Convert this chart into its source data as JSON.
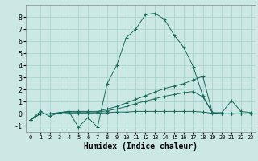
{
  "title": "",
  "xlabel": "Humidex (Indice chaleur)",
  "background_color": "#cce8e4",
  "grid_color": "#aad4cf",
  "line_color": "#1a6b5a",
  "xlim": [
    -0.5,
    23.5
  ],
  "ylim": [
    -1.5,
    9.0
  ],
  "xticks": [
    0,
    1,
    2,
    3,
    4,
    5,
    6,
    7,
    8,
    9,
    10,
    11,
    12,
    13,
    14,
    15,
    16,
    17,
    18,
    19,
    20,
    21,
    22,
    23
  ],
  "yticks": [
    -1,
    0,
    1,
    2,
    3,
    4,
    5,
    6,
    7,
    8
  ],
  "series": [
    [
      -0.5,
      0.2,
      -0.2,
      0.1,
      0.2,
      -1.1,
      -0.3,
      -1.1,
      2.5,
      4.0,
      6.3,
      7.0,
      8.2,
      8.3,
      7.8,
      6.5,
      5.5,
      3.9,
      1.5,
      0.1,
      0.1,
      1.1,
      0.2,
      0.1
    ],
    [
      -0.5,
      0.0,
      0.0,
      0.1,
      0.2,
      0.2,
      0.2,
      0.2,
      0.4,
      0.6,
      0.9,
      1.2,
      1.5,
      1.8,
      2.1,
      2.3,
      2.5,
      2.8,
      3.1,
      0.1,
      0.0,
      0.0,
      0.0,
      0.0
    ],
    [
      -0.5,
      0.0,
      0.0,
      0.1,
      0.15,
      0.15,
      0.15,
      0.15,
      0.25,
      0.4,
      0.6,
      0.85,
      1.05,
      1.25,
      1.45,
      1.6,
      1.75,
      1.85,
      1.4,
      0.1,
      0.0,
      0.0,
      0.0,
      0.0
    ],
    [
      -0.5,
      0.0,
      0.0,
      0.0,
      0.05,
      0.05,
      0.05,
      0.05,
      0.1,
      0.15,
      0.15,
      0.2,
      0.2,
      0.2,
      0.2,
      0.2,
      0.2,
      0.2,
      0.15,
      0.05,
      0.0,
      0.0,
      0.0,
      0.0
    ]
  ]
}
